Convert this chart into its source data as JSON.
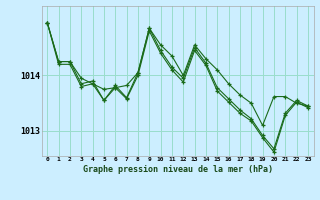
{
  "xlabel": "Graphe pression niveau de la mer (hPa)",
  "background_color": "#cceeff",
  "grid_color": "#99ddcc",
  "line_color": "#1a6b1a",
  "marker_color": "#1a6b1a",
  "yticks": [
    1013,
    1014
  ],
  "ylim": [
    1012.55,
    1015.25
  ],
  "xlim": [
    -0.5,
    23.5
  ],
  "xtick_labels": [
    "0",
    "1",
    "2",
    "3",
    "4",
    "5",
    "6",
    "7",
    "8",
    "9",
    "10",
    "11",
    "12",
    "13",
    "14",
    "15",
    "16",
    "17",
    "18",
    "19",
    "20",
    "21",
    "22",
    "23"
  ],
  "series": [
    [
      1014.95,
      1014.25,
      1014.25,
      1013.95,
      1013.85,
      1013.75,
      1013.78,
      1013.82,
      1014.05,
      1014.85,
      1014.55,
      1014.35,
      1014.0,
      1014.55,
      1014.3,
      1014.1,
      1013.85,
      1013.65,
      1013.5,
      1013.1,
      1013.62,
      1013.62,
      1013.5,
      1013.45
    ],
    [
      1014.95,
      1014.25,
      1014.25,
      1013.85,
      1013.9,
      1013.55,
      1013.82,
      1013.6,
      1014.05,
      1014.85,
      1014.45,
      1014.15,
      1013.95,
      1014.5,
      1014.22,
      1013.78,
      1013.58,
      1013.38,
      1013.22,
      1012.92,
      1012.68,
      1013.32,
      1013.55,
      1013.45
    ],
    [
      1014.95,
      1014.2,
      1014.2,
      1013.8,
      1013.85,
      1013.55,
      1013.78,
      1013.58,
      1014.0,
      1014.8,
      1014.4,
      1014.1,
      1013.88,
      1014.45,
      1014.18,
      1013.72,
      1013.52,
      1013.32,
      1013.18,
      1012.88,
      1012.62,
      1013.28,
      1013.52,
      1013.42
    ]
  ]
}
